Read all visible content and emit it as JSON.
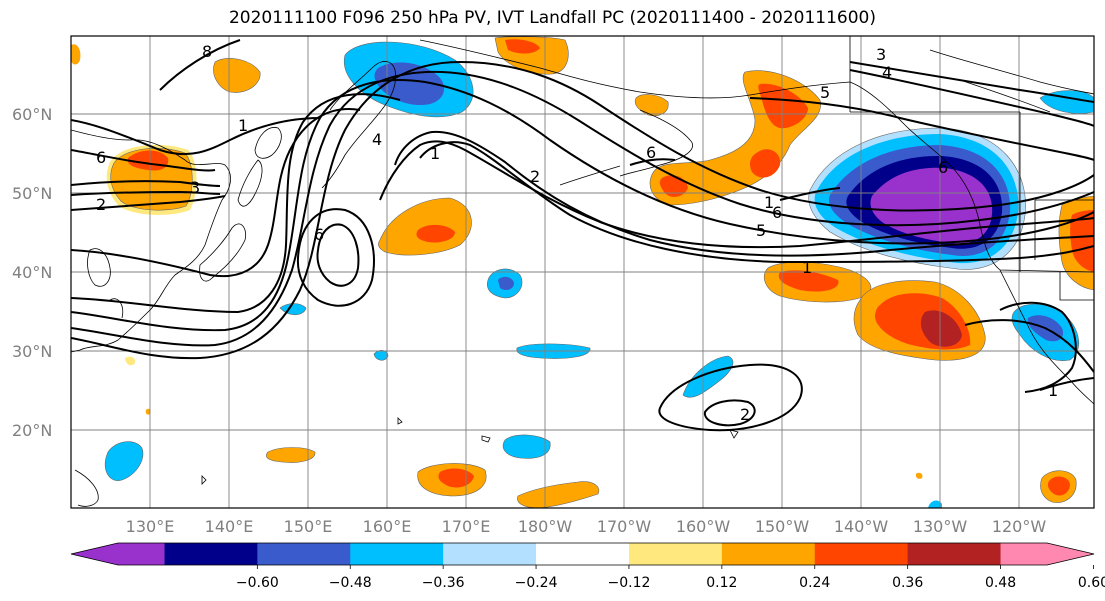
{
  "title": "2020111100 F096 250 hPa PV, IVT Landfall PC (2020111400 - 2020111600)",
  "lat_labels": [
    "60°N",
    "50°N",
    "40°N",
    "30°N",
    "20°N"
  ],
  "lon_labels": [
    "130°E",
    "140°E",
    "150°E",
    "160°E",
    "170°E",
    "180°W",
    "170°W",
    "160°W",
    "150°W",
    "140°W",
    "130°W",
    "120°W"
  ],
  "contour_labels": [
    "8",
    "1",
    "6",
    "3",
    "2",
    "6",
    "4",
    "2",
    "6",
    "5",
    "1",
    "6",
    "5",
    "3",
    "4",
    "1",
    "1",
    "2",
    "6",
    "1"
  ],
  "colorbar": {
    "ticks": [
      "−0.60",
      "−0.48",
      "−0.36",
      "−0.24",
      "−0.12",
      "0.12",
      "0.24",
      "0.36",
      "0.48",
      "0.60"
    ],
    "colors": [
      "#9932cc",
      "#00008b",
      "#3a5bcc",
      "#00bfff",
      "#b3e0ff",
      "#ffffff",
      "#ffe97f",
      "#ffa500",
      "#ff4500",
      "#b22222",
      "#ff88b0"
    ]
  }
}
